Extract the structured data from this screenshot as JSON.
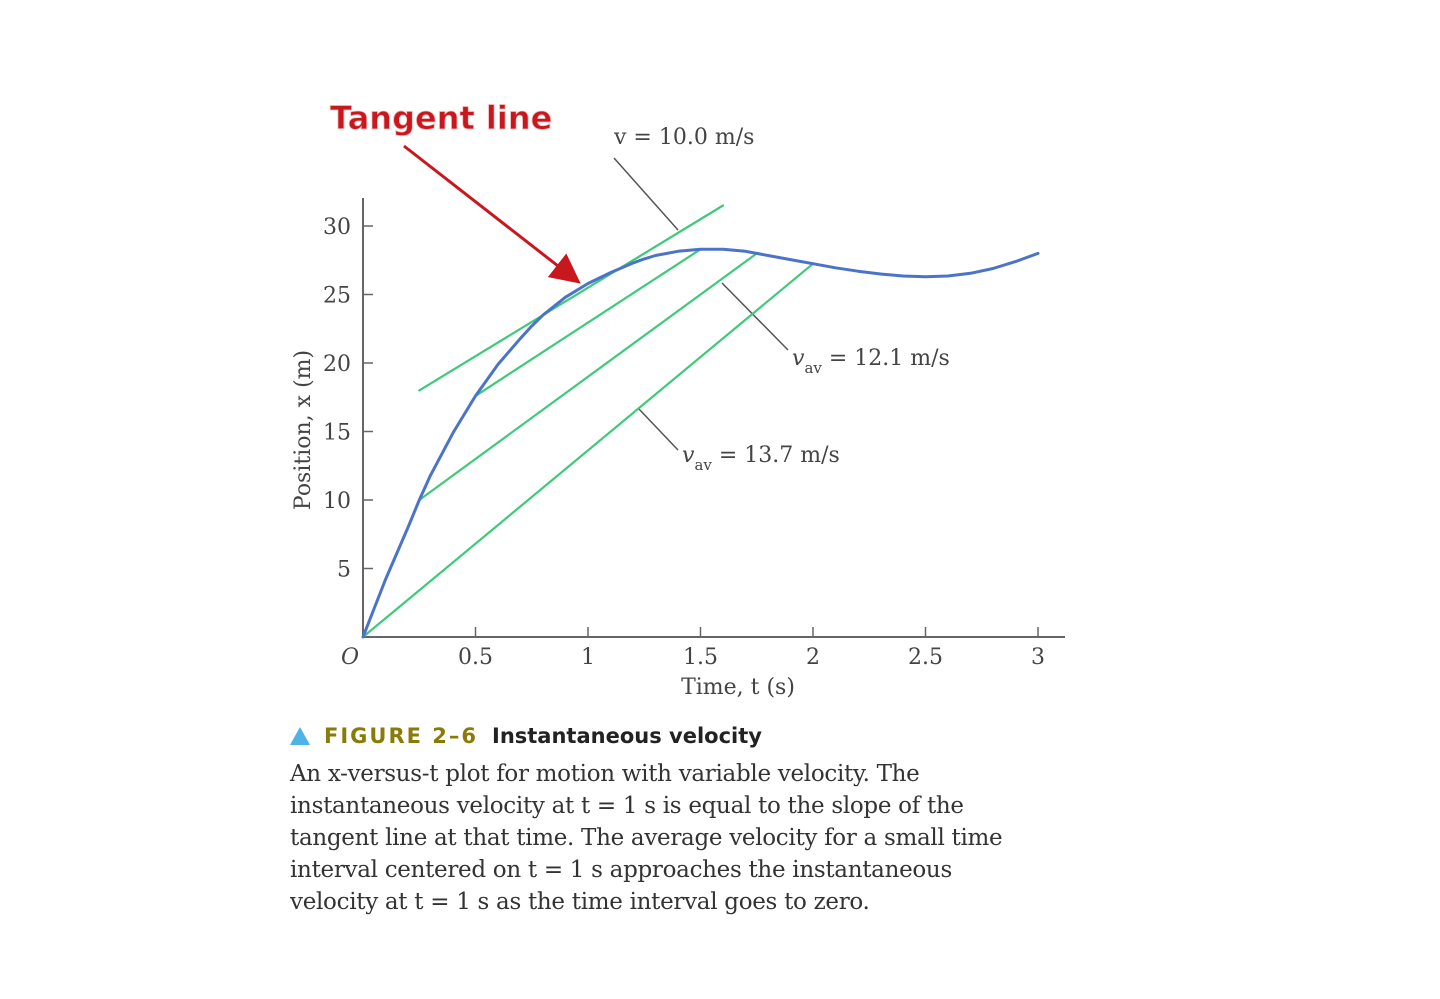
{
  "chart_data": {
    "type": "line",
    "xlabel": "Time, t (s)",
    "ylabel": "Position, x (m)",
    "xlim": [
      0,
      3.1
    ],
    "ylim": [
      0,
      32
    ],
    "x_ticks": [
      0.5,
      1,
      1.5,
      2,
      2.5,
      3
    ],
    "x_tick_labels": [
      "0.5",
      "1",
      "1.5",
      "2",
      "2.5",
      "3"
    ],
    "y_ticks": [
      5,
      10,
      15,
      20,
      25,
      30
    ],
    "y_tick_labels": [
      "5",
      "10",
      "15",
      "20",
      "25",
      "30"
    ],
    "origin_label": "O",
    "grid": false,
    "series": [
      {
        "kind": "curve",
        "color": "#4a74c9",
        "x": [
          0,
          0.1,
          0.2,
          0.25,
          0.3,
          0.4,
          0.5,
          0.6,
          0.7,
          0.75,
          0.8,
          0.9,
          1.0,
          1.1,
          1.2,
          1.25,
          1.3,
          1.4,
          1.5,
          1.6,
          1.7,
          1.75,
          1.8,
          1.9,
          2.0,
          2.1,
          2.2,
          2.3,
          2.4,
          2.5,
          2.6,
          2.7,
          2.8,
          2.9,
          3.0
        ],
        "y": [
          0,
          4.2,
          8.0,
          10.0,
          11.8,
          14.9,
          17.6,
          19.9,
          21.8,
          22.7,
          23.5,
          24.8,
          25.8,
          26.6,
          27.3,
          27.6,
          27.85,
          28.15,
          28.3,
          28.3,
          28.15,
          28.0,
          27.85,
          27.55,
          27.25,
          26.95,
          26.7,
          26.5,
          26.35,
          26.3,
          26.35,
          26.55,
          26.9,
          27.4,
          28.0
        ]
      },
      {
        "kind": "line",
        "color": "#3fc97a",
        "x": [
          0.25,
          1.6
        ],
        "y": [
          18.0,
          31.5
        ]
      },
      {
        "kind": "line",
        "color": "#3fc97a",
        "x": [
          0.5,
          1.5
        ],
        "y": [
          17.6,
          28.3
        ]
      },
      {
        "kind": "line",
        "color": "#3fc97a",
        "x": [
          0.25,
          1.75
        ],
        "y": [
          10.0,
          28.0
        ]
      },
      {
        "kind": "line",
        "color": "#3fc97a",
        "x": [
          0,
          2.0
        ],
        "y": [
          0,
          27.25
        ]
      }
    ],
    "annotations": [
      {
        "id": "tangent",
        "text": "Tangent line",
        "color": "#c8181e"
      },
      {
        "id": "v",
        "text": "v = 10.0 m/s"
      },
      {
        "id": "vav1",
        "text_main": "v",
        "text_sub": "av",
        "text_rest": " = 12.1 m/s"
      },
      {
        "id": "vav2",
        "text_main": "v",
        "text_sub": "av",
        "text_rest": " = 13.7 m/s"
      }
    ]
  },
  "caption": {
    "figure_label": "FIGURE 2–6",
    "title": "Instantaneous velocity",
    "lines": [
      "An x-versus-t plot for motion with variable velocity. The",
      "instantaneous velocity at t = 1 s is equal to the slope of the",
      "tangent line at that time. The average velocity for a small time",
      "interval centered on t = 1 s approaches the instantaneous",
      "velocity at t = 1 s as the time interval goes to zero."
    ]
  }
}
